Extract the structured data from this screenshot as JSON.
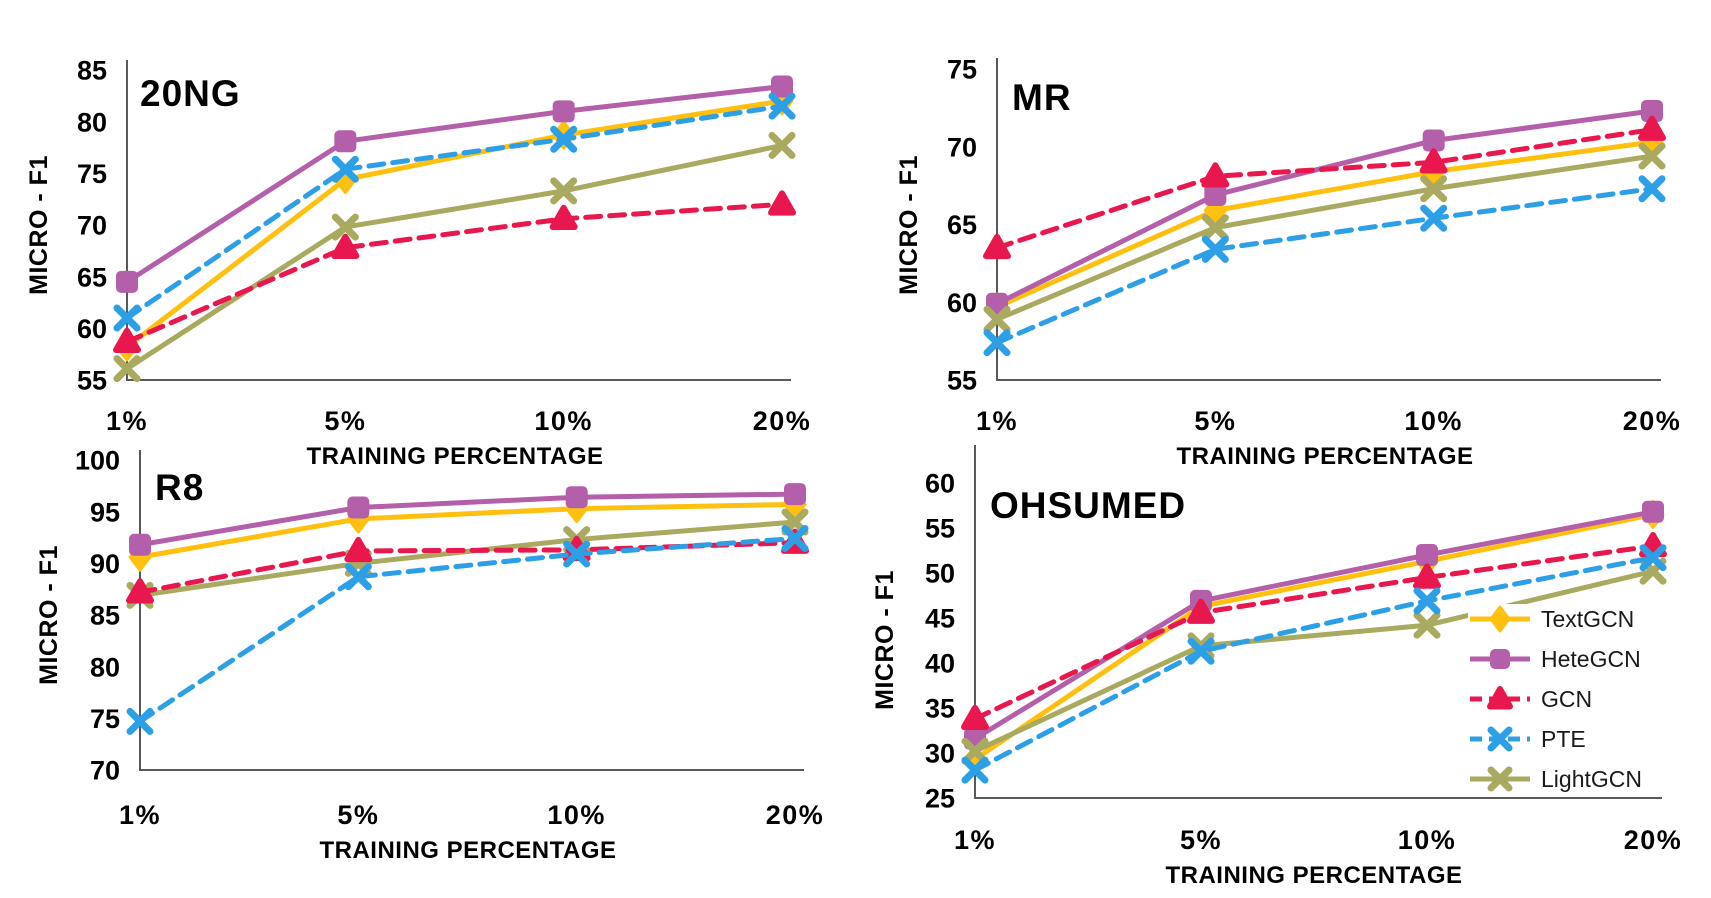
{
  "figure": {
    "background": "#ffffff",
    "text_color": "#000000",
    "axis_line_color": "#595959",
    "y_axis_title": "MICRO - F1",
    "x_axis_title": "TRAINING PERCENTAGE"
  },
  "series_styles": [
    {
      "name": "TextGCN",
      "color": "#FFC010",
      "line_style": "solid",
      "marker": "diamond"
    },
    {
      "name": "HeteGCN",
      "color": "#B35FA9",
      "line_style": "solid",
      "marker": "square"
    },
    {
      "name": "GCN",
      "color": "#E8174D",
      "line_style": "dashed",
      "marker": "triangle"
    },
    {
      "name": "PTE",
      "color": "#2D9FE6",
      "line_style": "dashed",
      "marker": "x"
    },
    {
      "name": "LightGCN",
      "color": "#A9A95F",
      "line_style": "solid",
      "marker": "x"
    }
  ],
  "legend": {
    "position": "inside-bottom-right-of-OHSUMED"
  },
  "chart_data": [
    {
      "type": "line",
      "title": "20NG",
      "xlabel": "TRAINING PERCENTAGE",
      "ylabel": "MICRO - F1",
      "categories": [
        "1%",
        "5%",
        "10%",
        "20%"
      ],
      "ylim": [
        55,
        85
      ],
      "yticks": [
        85,
        80,
        75,
        70,
        65,
        60,
        55
      ],
      "grid": false,
      "series": [
        {
          "name": "TextGCN",
          "values": [
            58.2,
            74.4,
            78.7,
            82.0
          ]
        },
        {
          "name": "HeteGCN",
          "values": [
            64.5,
            78.1,
            81.0,
            83.4
          ]
        },
        {
          "name": "GCN",
          "values": [
            58.7,
            67.8,
            70.6,
            72.0
          ]
        },
        {
          "name": "PTE",
          "values": [
            61.0,
            75.4,
            78.3,
            81.5
          ]
        },
        {
          "name": "LightGCN",
          "values": [
            56.1,
            69.8,
            73.3,
            77.7
          ]
        }
      ]
    },
    {
      "type": "line",
      "title": "MR",
      "xlabel": "TRAINING PERCENTAGE",
      "ylabel": "MICRO - F1",
      "categories": [
        "1%",
        "5%",
        "10%",
        "20%"
      ],
      "ylim": [
        55,
        75
      ],
      "yticks": [
        75,
        70,
        65,
        60,
        55
      ],
      "grid": false,
      "series": [
        {
          "name": "TextGCN",
          "values": [
            59.7,
            65.9,
            68.4,
            70.3
          ]
        },
        {
          "name": "HeteGCN",
          "values": [
            59.9,
            66.9,
            70.4,
            72.3
          ]
        },
        {
          "name": "GCN",
          "values": [
            63.5,
            68.1,
            69.0,
            71.1
          ]
        },
        {
          "name": "PTE",
          "values": [
            57.4,
            63.4,
            65.4,
            67.3
          ]
        },
        {
          "name": "LightGCN",
          "values": [
            58.9,
            64.8,
            67.3,
            69.4
          ]
        }
      ]
    },
    {
      "type": "line",
      "title": "R8",
      "xlabel": "TRAINING PERCENTAGE",
      "ylabel": "MICRO - F1",
      "categories": [
        "1%",
        "5%",
        "10%",
        "20%"
      ],
      "ylim": [
        70,
        100
      ],
      "yticks": [
        100,
        95,
        90,
        85,
        80,
        75,
        70
      ],
      "grid": false,
      "series": [
        {
          "name": "TextGCN",
          "values": [
            90.6,
            94.3,
            95.3,
            95.7
          ]
        },
        {
          "name": "HeteGCN",
          "values": [
            91.8,
            95.4,
            96.4,
            96.7
          ]
        },
        {
          "name": "GCN",
          "values": [
            87.2,
            91.2,
            91.3,
            92.0
          ]
        },
        {
          "name": "PTE",
          "values": [
            74.7,
            88.7,
            90.9,
            92.4
          ]
        },
        {
          "name": "LightGCN",
          "values": [
            86.9,
            90.0,
            92.3,
            94.0
          ]
        }
      ]
    },
    {
      "type": "line",
      "title": "OHSUMED",
      "xlabel": "TRAINING PERCENTAGE",
      "ylabel": "MICRO - F1",
      "categories": [
        "1%",
        "5%",
        "10%",
        "20%"
      ],
      "ylim": [
        25,
        60
      ],
      "yticks": [
        60,
        55,
        50,
        45,
        40,
        35,
        30,
        25
      ],
      "grid": false,
      "series": [
        {
          "name": "TextGCN",
          "values": [
            29.3,
            46.3,
            51.3,
            56.5
          ]
        },
        {
          "name": "HeteGCN",
          "values": [
            31.6,
            46.9,
            52.0,
            56.8
          ]
        },
        {
          "name": "GCN",
          "values": [
            33.8,
            45.6,
            49.5,
            53.0
          ]
        },
        {
          "name": "PTE",
          "values": [
            28.1,
            41.3,
            46.9,
            51.7
          ]
        },
        {
          "name": "LightGCN",
          "values": [
            30.2,
            41.9,
            44.2,
            50.2
          ]
        }
      ]
    }
  ]
}
